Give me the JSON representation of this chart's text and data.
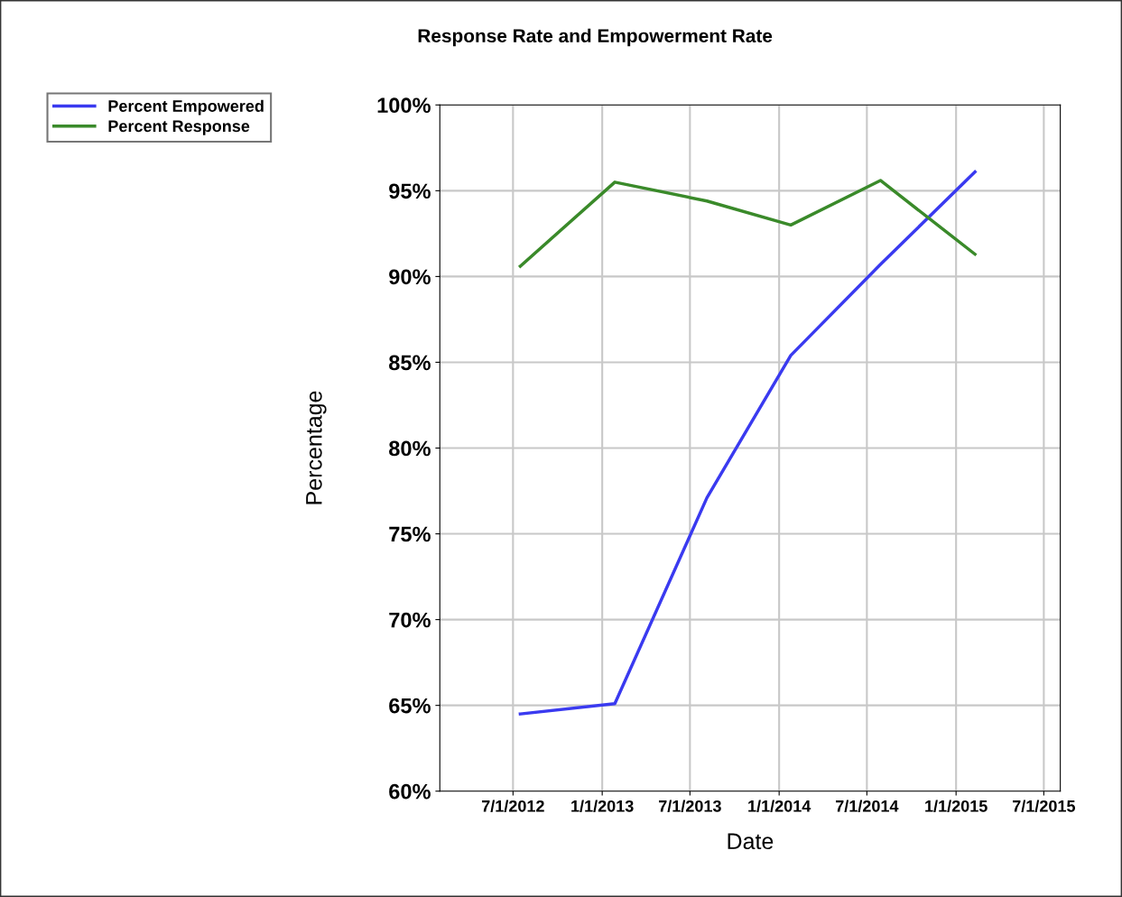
{
  "chart_data": {
    "type": "line",
    "title": "Response Rate and Empowerment Rate",
    "xlabel": "Date",
    "ylabel": "Percentage",
    "xlim": [
      "2012-02-01",
      "2015-08-04"
    ],
    "xticks": [
      {
        "value": "2012-07-01",
        "label": "7/1/2012"
      },
      {
        "value": "2013-01-01",
        "label": "1/1/2013"
      },
      {
        "value": "2013-07-01",
        "label": "7/1/2013"
      },
      {
        "value": "2014-01-01",
        "label": "1/1/2014"
      },
      {
        "value": "2014-07-01",
        "label": "7/1/2014"
      },
      {
        "value": "2015-01-01",
        "label": "1/1/2015"
      },
      {
        "value": "2015-07-01",
        "label": "7/1/2015"
      }
    ],
    "ylim": [
      60,
      100
    ],
    "yticks": [
      {
        "value": 60,
        "label": "60%"
      },
      {
        "value": 65,
        "label": "65%"
      },
      {
        "value": 70,
        "label": "70%"
      },
      {
        "value": 75,
        "label": "75%"
      },
      {
        "value": 80,
        "label": "80%"
      },
      {
        "value": 85,
        "label": "85%"
      },
      {
        "value": 90,
        "label": "90%"
      },
      {
        "value": 95,
        "label": "95%"
      },
      {
        "value": 100,
        "label": "100%"
      }
    ],
    "x": [
      "2012-07-16",
      "2013-01-27",
      "2013-08-05",
      "2014-01-25",
      "2014-07-29",
      "2015-02-09"
    ],
    "series": [
      {
        "name": "Percent Empowered",
        "color": "#3a3af0",
        "values": [
          64.5,
          65.1,
          77.1,
          85.4,
          90.7,
          96.1
        ]
      },
      {
        "name": "Percent Response",
        "color": "#3a8a2a",
        "values": [
          90.6,
          95.5,
          94.4,
          93.0,
          95.6,
          91.3
        ]
      }
    ],
    "grid": true,
    "legend": "top left",
    "line_style": "solid",
    "marker": "none"
  }
}
